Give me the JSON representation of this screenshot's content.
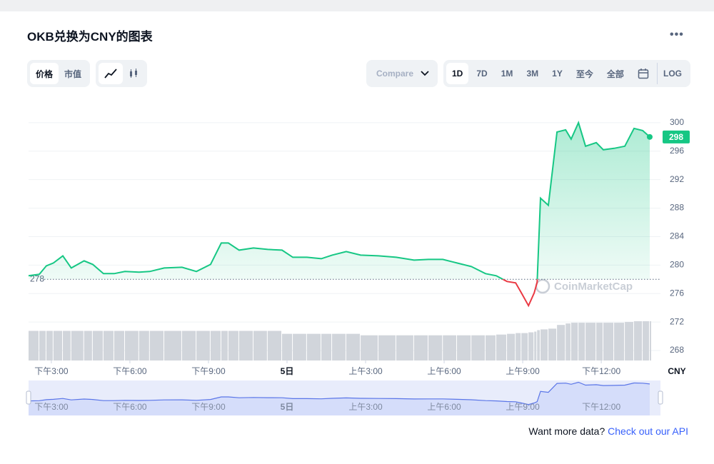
{
  "header": {
    "title": "OKB兑换为CNY的图表"
  },
  "toolbar": {
    "metric_tabs": [
      "价格",
      "市值"
    ],
    "compare": "Compare",
    "ranges": [
      "1D",
      "7D",
      "1M",
      "3M",
      "1Y",
      "至今",
      "全部"
    ],
    "log": "LOG"
  },
  "chart_data": {
    "type": "line",
    "x": [
      -0.87,
      -0.46,
      -0.19,
      0.08,
      0.44,
      0.76,
      1.25,
      1.58,
      1.99,
      2.4,
      2.81,
      3.35,
      3.76,
      4.31,
      4.99,
      5.54,
      6.08,
      6.49,
      6.76,
      7.17,
      7.72,
      8.26,
      8.81,
      9.22,
      9.76,
      10.31,
      10.72,
      11.26,
      11.81,
      12.49,
      13.17,
      13.85,
      14.4,
      14.95,
      15.49,
      16.04,
      16.58,
      16.99,
      17.4,
      17.73,
      17.95,
      18.22,
      18.44,
      18.55,
      18.68,
      18.98,
      19.31,
      19.64,
      19.85,
      20.13,
      20.4,
      20.81,
      21.08,
      21.49,
      21.9,
      22.25,
      22.58,
      22.85
    ],
    "values": [
      278.5,
      278.7,
      279.9,
      280.3,
      281.3,
      279.6,
      280.6,
      280.1,
      278.8,
      278.8,
      279.1,
      279.0,
      279.1,
      279.6,
      279.7,
      279.1,
      280.1,
      283.1,
      283.1,
      282.1,
      282.4,
      282.2,
      282.1,
      281.1,
      281.1,
      280.9,
      281.4,
      281.9,
      281.4,
      281.3,
      281.1,
      280.7,
      280.8,
      280.8,
      280.3,
      279.8,
      278.8,
      278.5,
      277.7,
      277.5,
      276.1,
      274.3,
      276.1,
      277.6,
      289.4,
      288.4,
      298.7,
      299.0,
      297.7,
      300.0,
      296.7,
      297.2,
      296.2,
      296.4,
      296.7,
      299.2,
      298.9,
      298
    ],
    "volume": [
      40,
      40,
      40,
      40,
      40,
      40,
      40,
      40,
      40,
      40,
      40,
      40,
      40,
      40,
      40,
      40,
      40,
      40,
      40,
      40,
      40,
      40,
      36,
      36,
      36,
      36,
      36,
      36,
      34,
      34,
      34,
      34,
      34,
      34,
      34,
      34,
      34,
      35,
      36,
      37,
      37,
      38,
      39,
      41,
      42,
      43,
      48,
      50,
      51,
      51,
      51,
      51,
      51,
      51,
      52,
      53,
      53,
      53
    ],
    "color": "#16c784",
    "below_color": "#ea3943",
    "volume_color": "#d1d5db",
    "reference_line": 278,
    "xlim": [
      -0.87,
      23.26
    ],
    "xticks": [
      {
        "value": 0,
        "label": "下午3:00"
      },
      {
        "value": 3,
        "label": "下午6:00"
      },
      {
        "value": 6,
        "label": "下午9:00"
      },
      {
        "value": 9,
        "label": "5日"
      },
      {
        "value": 12,
        "label": "上午3:00"
      },
      {
        "value": 15,
        "label": "上午6:00"
      },
      {
        "value": 18,
        "label": "上午9:00"
      },
      {
        "value": 21,
        "label": "下午12:00"
      }
    ],
    "ylim": [
      266.6,
      303.7
    ],
    "yticks": [
      268,
      272,
      276,
      280,
      284,
      288,
      292,
      296,
      300
    ],
    "grid": true,
    "x_unit_label": "CNY",
    "watermark": "CoinMarketCap"
  },
  "footer": {
    "prompt": "Want more data?",
    "link": "Check out our API"
  }
}
